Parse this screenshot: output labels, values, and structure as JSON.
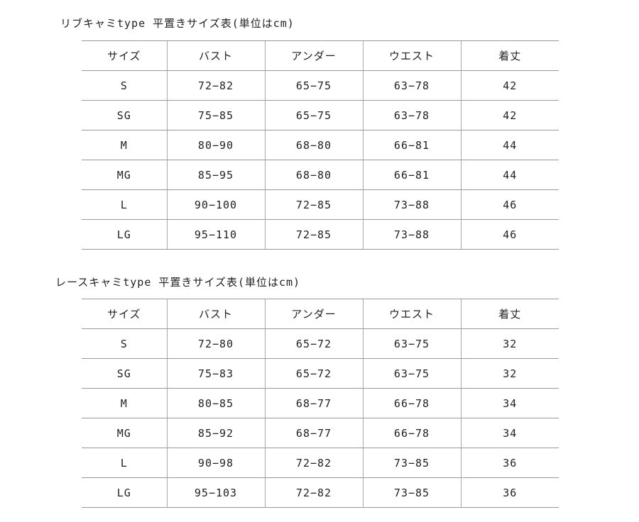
{
  "tables": [
    {
      "title": "リブキャミtype 平置きサイズ表(単位はcm)",
      "headers": [
        "サイズ",
        "バスト",
        "アンダー",
        "ウエスト",
        "着丈"
      ],
      "rows": [
        [
          "S",
          "72−82",
          "65−75",
          "63−78",
          "42"
        ],
        [
          "SG",
          "75−85",
          "65−75",
          "63−78",
          "42"
        ],
        [
          "M",
          "80−90",
          "68−80",
          "66−81",
          "44"
        ],
        [
          "MG",
          "85−95",
          "68−80",
          "66−81",
          "44"
        ],
        [
          "L",
          "90−100",
          "72−85",
          "73−88",
          "46"
        ],
        [
          "LG",
          "95−110",
          "72−85",
          "73−88",
          "46"
        ]
      ]
    },
    {
      "title": "レースキャミtype 平置きサイズ表(単位はcm)",
      "headers": [
        "サイズ",
        "バスト",
        "アンダー",
        "ウエスト",
        "着丈"
      ],
      "rows": [
        [
          "S",
          "72−80",
          "65−72",
          "63−75",
          "32"
        ],
        [
          "SG",
          "75−83",
          "65−72",
          "63−75",
          "32"
        ],
        [
          "M",
          "80−85",
          "68−77",
          "66−78",
          "34"
        ],
        [
          "MG",
          "85−92",
          "68−77",
          "66−78",
          "34"
        ],
        [
          "L",
          "90−98",
          "72−82",
          "73−85",
          "36"
        ],
        [
          "LG",
          "95−103",
          "72−82",
          "73−85",
          "36"
        ]
      ]
    }
  ]
}
